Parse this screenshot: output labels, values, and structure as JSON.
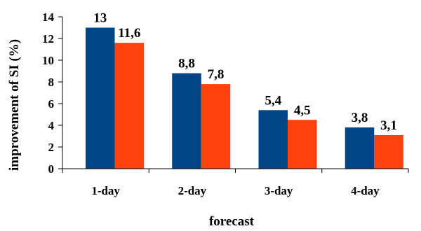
{
  "chart_data": {
    "type": "bar",
    "title": "",
    "xlabel": "forecast",
    "ylabel": "improvement of SI (%)",
    "categories": [
      "1-day",
      "2-day",
      "3-day",
      "4-day"
    ],
    "series": [
      {
        "values": [
          13,
          8.8,
          5.4,
          3.8
        ],
        "labels": [
          "13",
          "8,8",
          "5,4",
          "3,8"
        ],
        "color": "#004586"
      },
      {
        "values": [
          11.6,
          7.8,
          4.5,
          3.1
        ],
        "labels": [
          "11,6",
          "7,8",
          "4,5",
          "3,1"
        ],
        "color": "#ff420e"
      }
    ],
    "ylim": [
      0,
      14
    ],
    "yticks": [
      0,
      2,
      4,
      6,
      8,
      10,
      12,
      14
    ],
    "grid": false,
    "legend": "none"
  }
}
